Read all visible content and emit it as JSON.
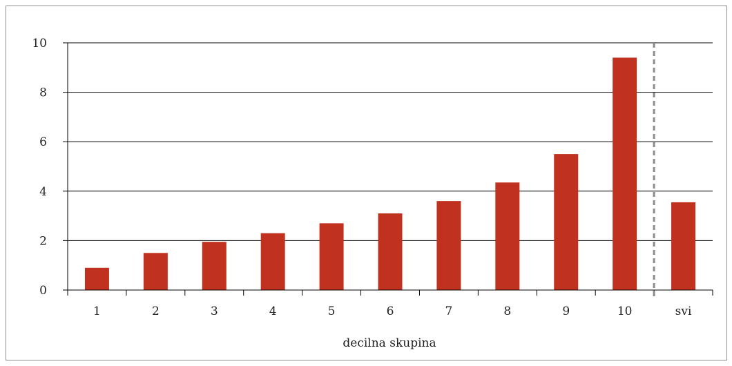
{
  "chart_data": {
    "type": "bar",
    "title": "",
    "xlabel": "decilna skupina",
    "ylabel": "",
    "categories": [
      "1",
      "2",
      "3",
      "4",
      "5",
      "6",
      "7",
      "8",
      "9",
      "10",
      "svi"
    ],
    "values": [
      0.9,
      1.5,
      1.95,
      2.3,
      2.7,
      3.1,
      3.6,
      4.35,
      5.5,
      9.4,
      3.55
    ],
    "ylim": [
      0,
      10
    ],
    "yticks": [
      "0",
      "2",
      "4",
      "6",
      "8",
      "10"
    ],
    "grid": true,
    "separator_before": "svi",
    "colors": {
      "bar": "#c0321f",
      "grid": "#000000",
      "separator": "#8c8c8c"
    }
  }
}
